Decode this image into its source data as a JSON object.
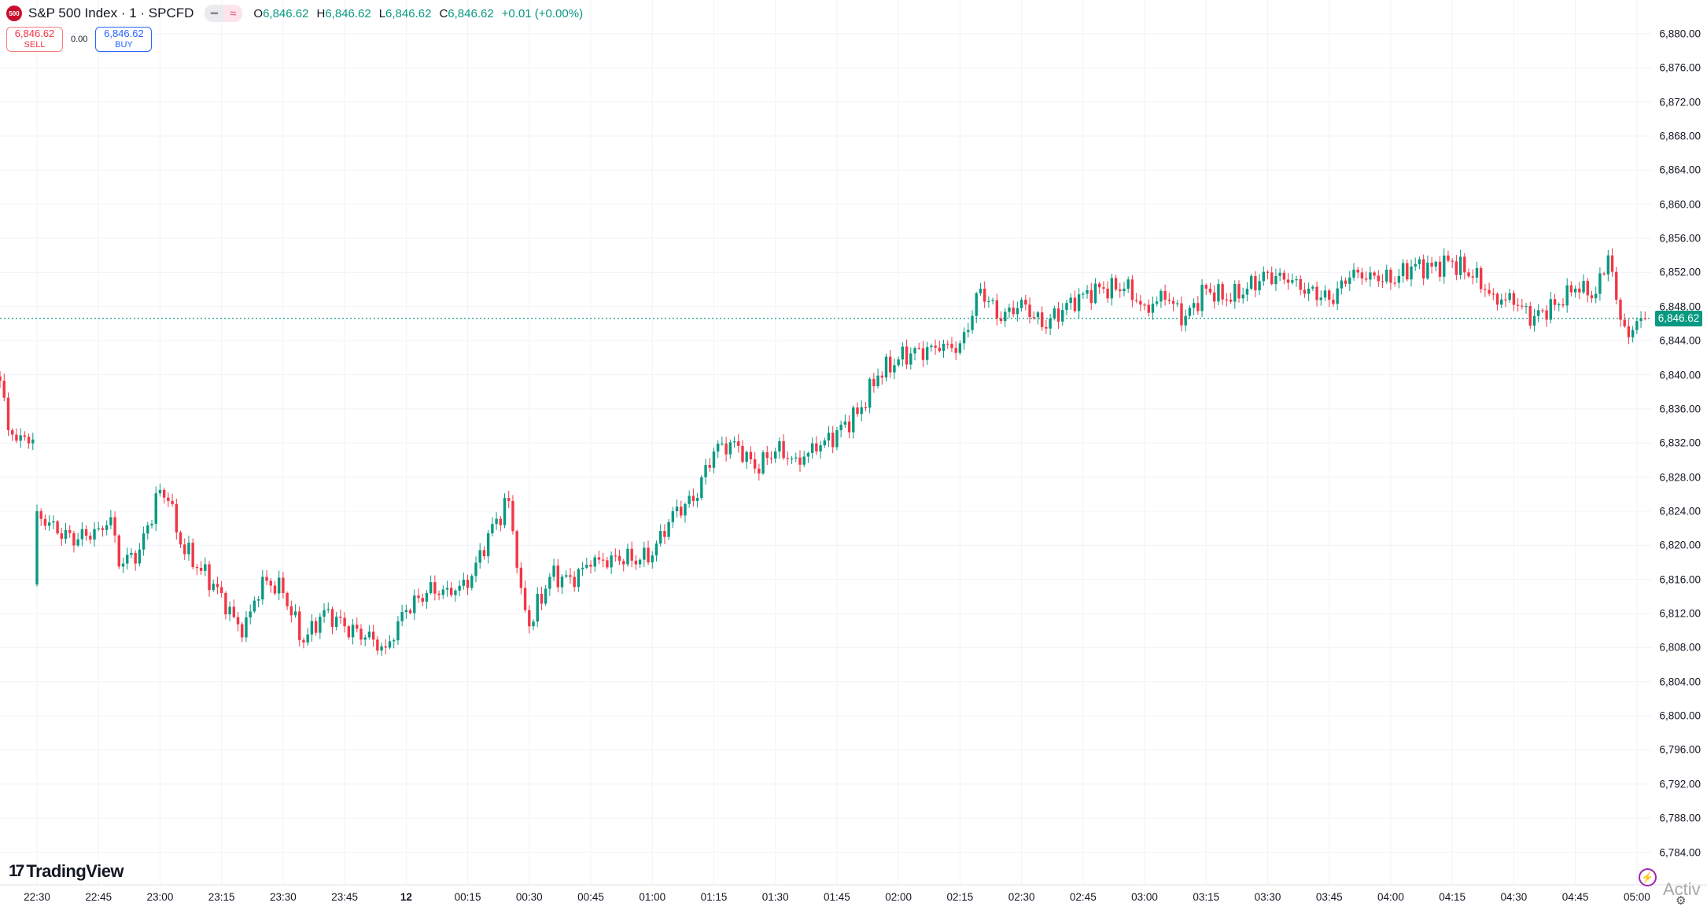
{
  "header": {
    "logo_text": "500",
    "title": "S&P 500 Index · 1 · SPCFD",
    "pill_icons": [
      "minus-icon",
      "approx-icon"
    ],
    "pill_glyphs": [
      "━",
      "≈"
    ],
    "ohlc": [
      {
        "key": "O",
        "value": "6,846.62"
      },
      {
        "key": "H",
        "value": "6,846.62"
      },
      {
        "key": "L",
        "value": "6,846.62"
      },
      {
        "key": "C",
        "value": "6,846.62"
      }
    ],
    "change": "+0.01 (+0.00%)"
  },
  "trade": {
    "sell_price": "6,846.62",
    "sell_label": "SELL",
    "spread": "0.00",
    "buy_price": "6,846.62",
    "buy_label": "BUY"
  },
  "price_axis": {
    "labels": [
      "6,880.00",
      "6,876.00",
      "6,872.00",
      "6,868.00",
      "6,864.00",
      "6,860.00",
      "6,856.00",
      "6,852.00",
      "6,848.00",
      "6,844.00",
      "6,840.00",
      "6,836.00",
      "6,832.00",
      "6,828.00",
      "6,824.00",
      "6,820.00",
      "6,816.00",
      "6,812.00",
      "6,808.00",
      "6,804.00",
      "6,800.00",
      "6,796.00",
      "6,792.00",
      "6,788.00",
      "6,784.00"
    ],
    "last_price": "6,846.62"
  },
  "time_axis": {
    "labels": [
      "22:30",
      "22:45",
      "23:00",
      "23:15",
      "23:30",
      "23:45",
      "12",
      "00:15",
      "00:30",
      "00:45",
      "01:00",
      "01:15",
      "01:30",
      "01:45",
      "02:00",
      "02:15",
      "02:30",
      "02:45",
      "03:00",
      "03:15",
      "03:30",
      "03:45",
      "04:00",
      "04:15",
      "04:30",
      "04:45",
      "05:00"
    ]
  },
  "branding": {
    "logo_mark": "17",
    "name": "TradingView"
  },
  "watermark": "Activ",
  "colors": {
    "up": "#089981",
    "down": "#F23645",
    "grid": "#f0f3fa",
    "last_price_line": "#089981",
    "bolt": "#9c27b0"
  },
  "chart_data": {
    "type": "candlestick",
    "interval": "1 minute",
    "ylim": [
      6782,
      6882
    ],
    "grid": true,
    "last_price": 6846.62,
    "approx_closes": [
      [
        "22:21",
        6839.3
      ],
      [
        "22:23",
        6833.5
      ],
      [
        "22:26",
        6832.9
      ],
      [
        "22:29",
        6832.4
      ],
      [
        "22:30",
        6824.0
      ],
      [
        "22:35",
        6821.4
      ],
      [
        "22:40",
        6820.7
      ],
      [
        "22:45",
        6822.0
      ],
      [
        "22:48",
        6823.3
      ],
      [
        "22:50",
        6817.5
      ],
      [
        "22:55",
        6819.5
      ],
      [
        "23:00",
        6826.5
      ],
      [
        "23:02",
        6825.2
      ],
      [
        "23:05",
        6820.1
      ],
      [
        "23:10",
        6817.0
      ],
      [
        "23:15",
        6814.4
      ],
      [
        "23:20",
        6809.2
      ],
      [
        "23:25",
        6816.3
      ],
      [
        "23:30",
        6814.4
      ],
      [
        "23:35",
        6808.6
      ],
      [
        "23:40",
        6812.4
      ],
      [
        "23:45",
        6810.5
      ],
      [
        "23:50",
        6809.2
      ],
      [
        "23:55",
        6808.0
      ],
      [
        "00:00",
        6812.4
      ],
      [
        "00:05",
        6814.4
      ],
      [
        "00:10",
        6815.0
      ],
      [
        "00:15",
        6815.0
      ],
      [
        "00:20",
        6821.4
      ],
      [
        "00:25",
        6825.2
      ],
      [
        "00:28",
        6815.0
      ],
      [
        "00:30",
        6810.5
      ],
      [
        "00:35",
        6816.3
      ],
      [
        "00:40",
        6816.3
      ],
      [
        "00:45",
        6817.5
      ],
      [
        "00:50",
        6818.8
      ],
      [
        "00:55",
        6818.2
      ],
      [
        "01:00",
        6818.8
      ],
      [
        "01:05",
        6824.0
      ],
      [
        "01:10",
        6825.2
      ],
      [
        "01:15",
        6831.0
      ],
      [
        "01:20",
        6832.2
      ],
      [
        "01:25",
        6829.0
      ],
      [
        "01:30",
        6831.0
      ],
      [
        "01:35",
        6830.3
      ],
      [
        "01:40",
        6831.0
      ],
      [
        "01:45",
        6833.5
      ],
      [
        "01:50",
        6835.4
      ],
      [
        "01:55",
        6839.9
      ],
      [
        "02:00",
        6841.8
      ],
      [
        "02:05",
        6843.1
      ],
      [
        "02:10",
        6842.8
      ],
      [
        "02:15",
        6843.7
      ],
      [
        "02:18",
        6846.9
      ],
      [
        "02:20",
        6850.1
      ],
      [
        "02:25",
        6846.3
      ],
      [
        "02:30",
        6848.8
      ],
      [
        "02:35",
        6845.6
      ],
      [
        "02:40",
        6847.6
      ],
      [
        "02:45",
        6849.5
      ],
      [
        "02:50",
        6850.1
      ],
      [
        "02:55",
        6850.1
      ],
      [
        "03:00",
        6848.2
      ],
      [
        "03:05",
        6848.8
      ],
      [
        "03:10",
        6846.9
      ],
      [
        "03:15",
        6850.1
      ],
      [
        "03:20",
        6848.8
      ],
      [
        "03:25",
        6850.1
      ],
      [
        "03:30",
        6852.0
      ],
      [
        "03:35",
        6850.8
      ],
      [
        "03:40",
        6850.1
      ],
      [
        "03:45",
        6848.8
      ],
      [
        "03:50",
        6851.4
      ],
      [
        "03:55",
        6852.0
      ],
      [
        "04:00",
        6850.8
      ],
      [
        "04:05",
        6852.7
      ],
      [
        "04:10",
        6852.7
      ],
      [
        "04:15",
        6853.3
      ],
      [
        "04:20",
        6851.4
      ],
      [
        "04:25",
        6849.5
      ],
      [
        "04:30",
        6848.2
      ],
      [
        "04:35",
        6846.9
      ],
      [
        "04:40",
        6848.2
      ],
      [
        "04:45",
        6850.1
      ],
      [
        "04:50",
        6849.5
      ],
      [
        "04:53",
        6854.0
      ],
      [
        "04:55",
        6848.8
      ],
      [
        "04:58",
        6844.4
      ],
      [
        "05:00",
        6846.3
      ],
      [
        "05:02",
        6846.62
      ]
    ]
  }
}
